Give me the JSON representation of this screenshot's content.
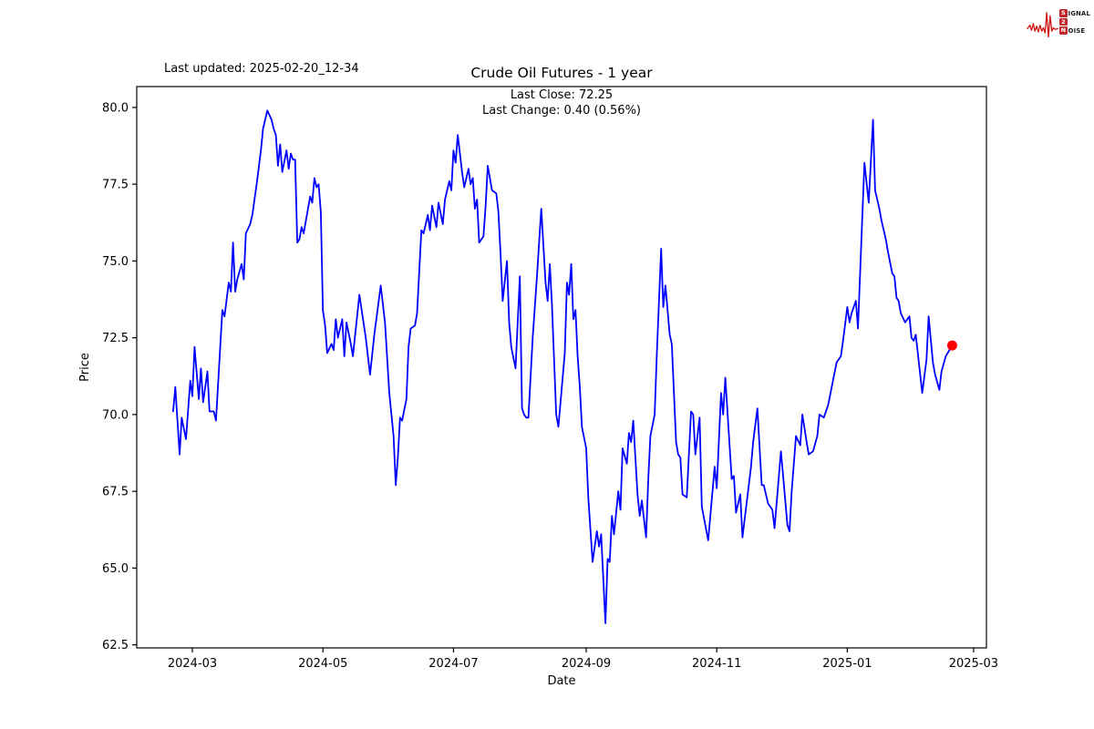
{
  "header": {
    "last_updated": "Last updated: 2025-02-20_12-34"
  },
  "logo": {
    "accent": "#c1272d",
    "waveform_color": "#cc1111",
    "letter1": "S",
    "word1": "IGNAL",
    "letter2": "2",
    "letter3": "N",
    "word3": "OISE"
  },
  "chart_data": {
    "type": "line",
    "title": "Crude Oil Futures - 1 year",
    "annotations": [
      "Last Close: 72.25",
      "Last Change: 0.40 (0.56%)"
    ],
    "xlabel": "Date",
    "ylabel": "Price",
    "x_ticks": [
      "2024-03",
      "2024-05",
      "2024-07",
      "2024-09",
      "2024-11",
      "2025-01",
      "2025-03"
    ],
    "y_ticks": [
      62.5,
      65.0,
      67.5,
      70.0,
      72.5,
      75.0,
      77.5,
      80.0
    ],
    "xlim": [
      "2024-02-04",
      "2025-03-07"
    ],
    "ylim": [
      62.4,
      80.68
    ],
    "grid": false,
    "legend": "none",
    "line_color": "#0000ff",
    "marker": {
      "date": "2025-02-19",
      "price": 72.25,
      "color": "#ff0000"
    },
    "series": [
      {
        "name": "Close",
        "points": [
          [
            "2024-02-21",
            70.1
          ],
          [
            "2024-02-22",
            70.9
          ],
          [
            "2024-02-24",
            68.7
          ],
          [
            "2024-02-25",
            69.9
          ],
          [
            "2024-02-27",
            69.2
          ],
          [
            "2024-02-29",
            71.1
          ],
          [
            "2024-03-01",
            70.6
          ],
          [
            "2024-03-02",
            72.2
          ],
          [
            "2024-03-04",
            70.5
          ],
          [
            "2024-03-05",
            71.5
          ],
          [
            "2024-03-06",
            70.4
          ],
          [
            "2024-03-08",
            71.4
          ],
          [
            "2024-03-09",
            70.1
          ],
          [
            "2024-03-11",
            70.1
          ],
          [
            "2024-03-12",
            69.8
          ],
          [
            "2024-03-15",
            73.4
          ],
          [
            "2024-03-16",
            73.2
          ],
          [
            "2024-03-18",
            74.3
          ],
          [
            "2024-03-19",
            74.0
          ],
          [
            "2024-03-20",
            75.6
          ],
          [
            "2024-03-21",
            74.0
          ],
          [
            "2024-03-22",
            74.4
          ],
          [
            "2024-03-24",
            74.9
          ],
          [
            "2024-03-25",
            74.4
          ],
          [
            "2024-03-26",
            75.9
          ],
          [
            "2024-03-28",
            76.2
          ],
          [
            "2024-03-29",
            76.5
          ],
          [
            "2024-03-31",
            77.5
          ],
          [
            "2024-04-02",
            78.6
          ],
          [
            "2024-04-03",
            79.3
          ],
          [
            "2024-04-05",
            79.9
          ],
          [
            "2024-04-07",
            79.6
          ],
          [
            "2024-04-08",
            79.3
          ],
          [
            "2024-04-09",
            79.1
          ],
          [
            "2024-04-10",
            78.1
          ],
          [
            "2024-04-11",
            78.8
          ],
          [
            "2024-04-12",
            77.9
          ],
          [
            "2024-04-14",
            78.6
          ],
          [
            "2024-04-15",
            78.0
          ],
          [
            "2024-04-16",
            78.5
          ],
          [
            "2024-04-17",
            78.3
          ],
          [
            "2024-04-18",
            78.3
          ],
          [
            "2024-04-19",
            75.6
          ],
          [
            "2024-04-20",
            75.7
          ],
          [
            "2024-04-21",
            76.1
          ],
          [
            "2024-04-22",
            75.9
          ],
          [
            "2024-04-25",
            77.1
          ],
          [
            "2024-04-26",
            76.9
          ],
          [
            "2024-04-27",
            77.7
          ],
          [
            "2024-04-28",
            77.4
          ],
          [
            "2024-04-29",
            77.5
          ],
          [
            "2024-04-30",
            76.6
          ],
          [
            "2024-05-01",
            73.4
          ],
          [
            "2024-05-02",
            72.9
          ],
          [
            "2024-05-03",
            72.0
          ],
          [
            "2024-05-05",
            72.3
          ],
          [
            "2024-05-06",
            72.1
          ],
          [
            "2024-05-07",
            73.1
          ],
          [
            "2024-05-08",
            72.5
          ],
          [
            "2024-05-10",
            73.1
          ],
          [
            "2024-05-11",
            71.9
          ],
          [
            "2024-05-12",
            73.0
          ],
          [
            "2024-05-14",
            72.3
          ],
          [
            "2024-05-15",
            71.9
          ],
          [
            "2024-05-18",
            73.9
          ],
          [
            "2024-05-21",
            72.5
          ],
          [
            "2024-05-23",
            71.3
          ],
          [
            "2024-05-25",
            72.6
          ],
          [
            "2024-05-28",
            74.2
          ],
          [
            "2024-05-30",
            73.0
          ],
          [
            "2024-06-01",
            70.7
          ],
          [
            "2024-06-03",
            69.3
          ],
          [
            "2024-06-04",
            67.7
          ],
          [
            "2024-06-05",
            68.6
          ],
          [
            "2024-06-06",
            69.9
          ],
          [
            "2024-06-07",
            69.8
          ],
          [
            "2024-06-09",
            70.5
          ],
          [
            "2024-06-10",
            72.2
          ],
          [
            "2024-06-11",
            72.8
          ],
          [
            "2024-06-13",
            72.9
          ],
          [
            "2024-06-14",
            73.3
          ],
          [
            "2024-06-16",
            76.0
          ],
          [
            "2024-06-17",
            75.9
          ],
          [
            "2024-06-19",
            76.5
          ],
          [
            "2024-06-20",
            76.0
          ],
          [
            "2024-06-21",
            76.8
          ],
          [
            "2024-06-23",
            76.1
          ],
          [
            "2024-06-24",
            76.9
          ],
          [
            "2024-06-26",
            76.2
          ],
          [
            "2024-06-27",
            77.0
          ],
          [
            "2024-06-29",
            77.6
          ],
          [
            "2024-06-30",
            77.3
          ],
          [
            "2024-07-01",
            78.6
          ],
          [
            "2024-07-02",
            78.2
          ],
          [
            "2024-07-03",
            79.1
          ],
          [
            "2024-07-04",
            78.5
          ],
          [
            "2024-07-05",
            77.9
          ],
          [
            "2024-07-06",
            77.4
          ],
          [
            "2024-07-08",
            78.0
          ],
          [
            "2024-07-09",
            77.5
          ],
          [
            "2024-07-10",
            77.7
          ],
          [
            "2024-07-11",
            76.7
          ],
          [
            "2024-07-12",
            77.0
          ],
          [
            "2024-07-13",
            75.6
          ],
          [
            "2024-07-15",
            75.8
          ],
          [
            "2024-07-16",
            76.8
          ],
          [
            "2024-07-17",
            78.1
          ],
          [
            "2024-07-19",
            77.3
          ],
          [
            "2024-07-21",
            77.2
          ],
          [
            "2024-07-22",
            76.6
          ],
          [
            "2024-07-23",
            75.2
          ],
          [
            "2024-07-24",
            73.7
          ],
          [
            "2024-07-26",
            75.0
          ],
          [
            "2024-07-27",
            73.0
          ],
          [
            "2024-07-28",
            72.2
          ],
          [
            "2024-07-30",
            71.5
          ],
          [
            "2024-08-01",
            74.5
          ],
          [
            "2024-08-02",
            70.2
          ],
          [
            "2024-08-03",
            70.0
          ],
          [
            "2024-08-04",
            69.9
          ],
          [
            "2024-08-05",
            69.9
          ],
          [
            "2024-08-07",
            72.5
          ],
          [
            "2024-08-09",
            74.5
          ],
          [
            "2024-08-11",
            76.7
          ],
          [
            "2024-08-13",
            74.3
          ],
          [
            "2024-08-14",
            73.7
          ],
          [
            "2024-08-15",
            74.9
          ],
          [
            "2024-08-16",
            73.6
          ],
          [
            "2024-08-18",
            70.0
          ],
          [
            "2024-08-19",
            69.6
          ],
          [
            "2024-08-22",
            72.0
          ],
          [
            "2024-08-23",
            74.3
          ],
          [
            "2024-08-24",
            73.9
          ],
          [
            "2024-08-25",
            74.9
          ],
          [
            "2024-08-26",
            73.1
          ],
          [
            "2024-08-27",
            73.4
          ],
          [
            "2024-08-28",
            71.9
          ],
          [
            "2024-08-29",
            70.9
          ],
          [
            "2024-08-30",
            69.6
          ],
          [
            "2024-09-01",
            68.9
          ],
          [
            "2024-09-02",
            67.3
          ],
          [
            "2024-09-04",
            65.2
          ],
          [
            "2024-09-06",
            66.2
          ],
          [
            "2024-09-07",
            65.7
          ],
          [
            "2024-09-08",
            66.1
          ],
          [
            "2024-09-10",
            63.2
          ],
          [
            "2024-09-11",
            65.3
          ],
          [
            "2024-09-12",
            65.2
          ],
          [
            "2024-09-13",
            66.7
          ],
          [
            "2024-09-14",
            66.1
          ],
          [
            "2024-09-16",
            67.5
          ],
          [
            "2024-09-17",
            66.9
          ],
          [
            "2024-09-18",
            68.9
          ],
          [
            "2024-09-20",
            68.4
          ],
          [
            "2024-09-21",
            69.4
          ],
          [
            "2024-09-22",
            69.1
          ],
          [
            "2024-09-23",
            69.8
          ],
          [
            "2024-09-25",
            67.4
          ],
          [
            "2024-09-26",
            66.7
          ],
          [
            "2024-09-27",
            67.2
          ],
          [
            "2024-09-29",
            66.0
          ],
          [
            "2024-09-30",
            67.9
          ],
          [
            "2024-10-01",
            69.3
          ],
          [
            "2024-10-03",
            70.0
          ],
          [
            "2024-10-04",
            72.0
          ],
          [
            "2024-10-06",
            75.4
          ],
          [
            "2024-10-07",
            73.5
          ],
          [
            "2024-10-08",
            74.2
          ],
          [
            "2024-10-10",
            72.6
          ],
          [
            "2024-10-11",
            72.3
          ],
          [
            "2024-10-13",
            69.1
          ],
          [
            "2024-10-14",
            68.7
          ],
          [
            "2024-10-15",
            68.6
          ],
          [
            "2024-10-16",
            67.4
          ],
          [
            "2024-10-18",
            67.3
          ],
          [
            "2024-10-20",
            70.1
          ],
          [
            "2024-10-21",
            70.0
          ],
          [
            "2024-10-22",
            68.7
          ],
          [
            "2024-10-24",
            69.9
          ],
          [
            "2024-10-25",
            67.0
          ],
          [
            "2024-10-28",
            65.9
          ],
          [
            "2024-10-31",
            68.3
          ],
          [
            "2024-11-01",
            67.6
          ],
          [
            "2024-11-03",
            70.7
          ],
          [
            "2024-11-04",
            70.0
          ],
          [
            "2024-11-05",
            71.2
          ],
          [
            "2024-11-08",
            67.9
          ],
          [
            "2024-11-09",
            68.0
          ],
          [
            "2024-11-10",
            66.8
          ],
          [
            "2024-11-12",
            67.4
          ],
          [
            "2024-11-13",
            66.0
          ],
          [
            "2024-11-17",
            68.3
          ],
          [
            "2024-11-18",
            69.1
          ],
          [
            "2024-11-20",
            70.2
          ],
          [
            "2024-11-22",
            67.7
          ],
          [
            "2024-11-23",
            67.7
          ],
          [
            "2024-11-25",
            67.1
          ],
          [
            "2024-11-26",
            67.0
          ],
          [
            "2024-11-27",
            66.9
          ],
          [
            "2024-11-28",
            66.3
          ],
          [
            "2024-12-01",
            68.8
          ],
          [
            "2024-12-02",
            68.0
          ],
          [
            "2024-12-04",
            66.4
          ],
          [
            "2024-12-05",
            66.2
          ],
          [
            "2024-12-06",
            67.5
          ],
          [
            "2024-12-08",
            69.3
          ],
          [
            "2024-12-10",
            69.0
          ],
          [
            "2024-12-11",
            70.0
          ],
          [
            "2024-12-13",
            69.1
          ],
          [
            "2024-12-14",
            68.7
          ],
          [
            "2024-12-16",
            68.8
          ],
          [
            "2024-12-18",
            69.3
          ],
          [
            "2024-12-19",
            70.0
          ],
          [
            "2024-12-21",
            69.9
          ],
          [
            "2024-12-23",
            70.3
          ],
          [
            "2024-12-25",
            71.0
          ],
          [
            "2024-12-27",
            71.7
          ],
          [
            "2024-12-29",
            71.9
          ],
          [
            "2024-12-30",
            72.4
          ],
          [
            "2025-01-01",
            73.5
          ],
          [
            "2025-01-02",
            73.0
          ],
          [
            "2025-01-03",
            73.3
          ],
          [
            "2025-01-05",
            73.7
          ],
          [
            "2025-01-06",
            72.8
          ],
          [
            "2025-01-08",
            76.4
          ],
          [
            "2025-01-09",
            78.2
          ],
          [
            "2025-01-11",
            76.9
          ],
          [
            "2025-01-13",
            79.6
          ],
          [
            "2025-01-14",
            77.3
          ],
          [
            "2025-01-16",
            76.7
          ],
          [
            "2025-01-17",
            76.3
          ],
          [
            "2025-01-19",
            75.7
          ],
          [
            "2025-01-20",
            75.3
          ],
          [
            "2025-01-22",
            74.6
          ],
          [
            "2025-01-23",
            74.5
          ],
          [
            "2025-01-24",
            73.8
          ],
          [
            "2025-01-25",
            73.7
          ],
          [
            "2025-01-26",
            73.3
          ],
          [
            "2025-01-28",
            73.0
          ],
          [
            "2025-01-30",
            73.2
          ],
          [
            "2025-01-31",
            72.5
          ],
          [
            "2025-02-01",
            72.4
          ],
          [
            "2025-02-02",
            72.6
          ],
          [
            "2025-02-05",
            70.7
          ],
          [
            "2025-02-07",
            71.8
          ],
          [
            "2025-02-08",
            73.2
          ],
          [
            "2025-02-10",
            71.7
          ],
          [
            "2025-02-11",
            71.3
          ],
          [
            "2025-02-13",
            70.8
          ],
          [
            "2025-02-14",
            71.4
          ],
          [
            "2025-02-16",
            71.9
          ],
          [
            "2025-02-19",
            72.25
          ]
        ]
      }
    ]
  }
}
